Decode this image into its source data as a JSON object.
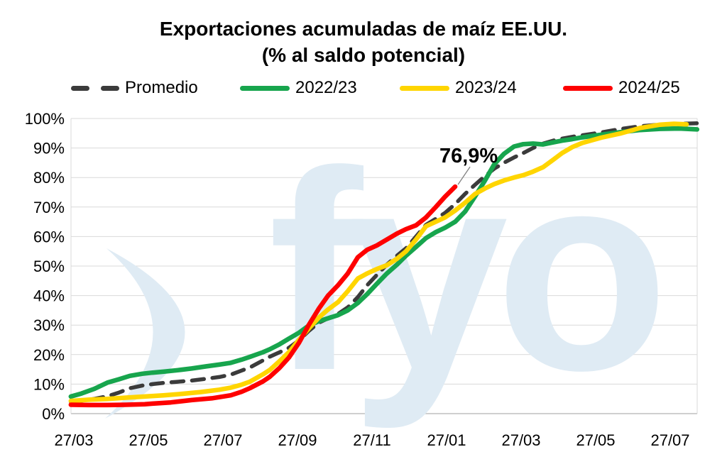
{
  "title": {
    "line1": "Exportaciones acumuladas de maíz EE.UU.",
    "line2": "(% al saldo potencial)"
  },
  "legend": [
    {
      "label": "Promedio",
      "color": "#3B3B3B",
      "dashed": true
    },
    {
      "label": "2022/23",
      "color": "#17A54D",
      "dashed": false
    },
    {
      "label": "2023/24",
      "color": "#FFD500",
      "dashed": false
    },
    {
      "label": "2024/25",
      "color": "#FE0000",
      "dashed": false
    }
  ],
  "annotation": {
    "text": "76,9%",
    "value": 76.9,
    "series": "2024/25"
  },
  "watermark": {
    "text": "fyo",
    "color": "#DFEBF4"
  },
  "chart_data": {
    "type": "line",
    "title": "Exportaciones acumuladas de maíz EE.UU. (% al saldo potencial)",
    "xlabel": "",
    "ylabel": "",
    "x_unit": "months since 27/03",
    "x_tick_labels": [
      "27/03",
      "27/05",
      "27/07",
      "27/09",
      "27/11",
      "27/01",
      "27/03",
      "27/05",
      "27/07"
    ],
    "x_tick_positions": [
      0,
      2,
      4,
      6,
      8,
      10,
      12,
      14,
      16
    ],
    "xlim": [
      -0.08,
      16.72
    ],
    "ylim": [
      0,
      100
    ],
    "y_ticks": [
      0,
      10,
      20,
      30,
      40,
      50,
      60,
      70,
      80,
      90,
      100
    ],
    "grid": "horizontal",
    "legend_position": "top",
    "series": [
      {
        "name": "Promedio",
        "color": "#3B3B3B",
        "style": "dashed",
        "points": [
          [
            -0.08,
            4.0
          ],
          [
            0.2,
            4.4
          ],
          [
            0.55,
            5.0
          ],
          [
            0.9,
            5.9
          ],
          [
            1.2,
            7.1
          ],
          [
            1.5,
            8.6
          ],
          [
            1.83,
            9.5
          ],
          [
            2.11,
            10.0
          ],
          [
            2.4,
            10.4
          ],
          [
            2.78,
            10.8
          ],
          [
            3.16,
            11.2
          ],
          [
            3.55,
            11.8
          ],
          [
            3.9,
            12.4
          ],
          [
            4.21,
            13.2
          ],
          [
            4.5,
            14.6
          ],
          [
            4.72,
            15.6
          ],
          [
            5.07,
            18.0
          ],
          [
            5.26,
            19.3
          ],
          [
            5.52,
            20.8
          ],
          [
            5.77,
            22.3
          ],
          [
            6.04,
            24.8
          ],
          [
            6.3,
            28.0
          ],
          [
            6.57,
            30.8
          ],
          [
            6.82,
            32.3
          ],
          [
            7.09,
            33.8
          ],
          [
            7.35,
            36.0
          ],
          [
            7.62,
            39.5
          ],
          [
            7.87,
            43.5
          ],
          [
            8.13,
            47.0
          ],
          [
            8.4,
            50.5
          ],
          [
            8.67,
            53.5
          ],
          [
            8.91,
            56.0
          ],
          [
            9.18,
            60.0
          ],
          [
            9.45,
            64.0
          ],
          [
            9.71,
            66.0
          ],
          [
            9.96,
            68.0
          ],
          [
            10.23,
            71.0
          ],
          [
            10.5,
            74.5
          ],
          [
            10.76,
            77.5
          ],
          [
            11.03,
            80.5
          ],
          [
            11.28,
            83.0
          ],
          [
            11.54,
            85.0
          ],
          [
            11.81,
            86.8
          ],
          [
            12.06,
            88.3
          ],
          [
            12.32,
            90.0
          ],
          [
            12.59,
            91.5
          ],
          [
            12.86,
            92.5
          ],
          [
            13.1,
            93.2
          ],
          [
            13.37,
            93.8
          ],
          [
            13.64,
            94.3
          ],
          [
            14.15,
            95.3
          ],
          [
            14.69,
            96.5
          ],
          [
            15.2,
            97.4
          ],
          [
            15.73,
            97.9
          ],
          [
            16.25,
            98.2
          ],
          [
            16.72,
            98.4
          ]
        ]
      },
      {
        "name": "2022/23",
        "color": "#17A54D",
        "style": "solid",
        "points": [
          [
            -0.08,
            5.8
          ],
          [
            0.2,
            6.8
          ],
          [
            0.55,
            8.4
          ],
          [
            0.9,
            10.5
          ],
          [
            1.2,
            11.6
          ],
          [
            1.5,
            12.8
          ],
          [
            1.83,
            13.5
          ],
          [
            2.11,
            13.9
          ],
          [
            2.4,
            14.2
          ],
          [
            2.78,
            14.7
          ],
          [
            3.16,
            15.3
          ],
          [
            3.55,
            16.0
          ],
          [
            3.9,
            16.6
          ],
          [
            4.21,
            17.2
          ],
          [
            4.5,
            18.3
          ],
          [
            4.72,
            19.2
          ],
          [
            5.07,
            20.8
          ],
          [
            5.26,
            21.8
          ],
          [
            5.52,
            23.5
          ],
          [
            5.77,
            25.4
          ],
          [
            6.04,
            27.4
          ],
          [
            6.3,
            29.8
          ],
          [
            6.57,
            31.3
          ],
          [
            6.82,
            32.3
          ],
          [
            7.09,
            33.4
          ],
          [
            7.35,
            35.0
          ],
          [
            7.62,
            37.5
          ],
          [
            7.87,
            40.5
          ],
          [
            8.13,
            44.0
          ],
          [
            8.4,
            47.5
          ],
          [
            8.67,
            50.5
          ],
          [
            8.91,
            53.5
          ],
          [
            9.18,
            56.5
          ],
          [
            9.45,
            59.5
          ],
          [
            9.71,
            61.5
          ],
          [
            9.96,
            63.0
          ],
          [
            10.23,
            65.0
          ],
          [
            10.5,
            68.5
          ],
          [
            10.76,
            73.5
          ],
          [
            11.03,
            79.0
          ],
          [
            11.28,
            84.5
          ],
          [
            11.54,
            88.0
          ],
          [
            11.81,
            90.5
          ],
          [
            12.06,
            91.3
          ],
          [
            12.32,
            91.5
          ],
          [
            12.59,
            91.2
          ],
          [
            12.86,
            91.9
          ],
          [
            13.1,
            92.5
          ],
          [
            13.37,
            93.0
          ],
          [
            13.64,
            93.6
          ],
          [
            14.15,
            94.5
          ],
          [
            14.69,
            95.4
          ],
          [
            15.2,
            96.1
          ],
          [
            15.73,
            96.5
          ],
          [
            16.25,
            96.6
          ],
          [
            16.72,
            96.3
          ]
        ]
      },
      {
        "name": "2023/24",
        "color": "#FFD500",
        "style": "solid",
        "points": [
          [
            -0.08,
            4.3
          ],
          [
            0.4,
            4.7
          ],
          [
            0.9,
            5.0
          ],
          [
            1.4,
            5.4
          ],
          [
            1.9,
            5.8
          ],
          [
            2.4,
            6.2
          ],
          [
            2.9,
            6.7
          ],
          [
            3.4,
            7.3
          ],
          [
            3.9,
            8.1
          ],
          [
            4.21,
            8.8
          ],
          [
            4.5,
            9.8
          ],
          [
            4.72,
            10.8
          ],
          [
            5.07,
            13.3
          ],
          [
            5.26,
            14.8
          ],
          [
            5.52,
            17.8
          ],
          [
            5.77,
            20.8
          ],
          [
            6.04,
            25.0
          ],
          [
            6.3,
            28.8
          ],
          [
            6.57,
            32.5
          ],
          [
            6.82,
            35.3
          ],
          [
            7.09,
            37.8
          ],
          [
            7.35,
            41.5
          ],
          [
            7.62,
            45.8
          ],
          [
            7.87,
            47.5
          ],
          [
            8.13,
            49.0
          ],
          [
            8.4,
            50.3
          ],
          [
            8.67,
            52.5
          ],
          [
            8.91,
            55.0
          ],
          [
            9.18,
            59.0
          ],
          [
            9.45,
            63.5
          ],
          [
            9.71,
            65.0
          ],
          [
            9.96,
            66.5
          ],
          [
            10.23,
            68.8
          ],
          [
            10.5,
            71.5
          ],
          [
            10.76,
            74.4
          ],
          [
            11.03,
            76.3
          ],
          [
            11.28,
            77.8
          ],
          [
            11.54,
            79.0
          ],
          [
            11.81,
            80.0
          ],
          [
            12.06,
            80.8
          ],
          [
            12.32,
            82.0
          ],
          [
            12.59,
            83.5
          ],
          [
            12.86,
            86.0
          ],
          [
            13.1,
            88.3
          ],
          [
            13.37,
            90.3
          ],
          [
            13.64,
            91.7
          ],
          [
            14.15,
            93.5
          ],
          [
            14.69,
            95.0
          ],
          [
            15.2,
            96.8
          ],
          [
            15.73,
            97.9
          ],
          [
            16.1,
            98.2
          ],
          [
            16.44,
            98.0
          ]
        ]
      },
      {
        "name": "2024/25",
        "color": "#FE0000",
        "style": "solid",
        "end_label": "76,9%",
        "points": [
          [
            -0.08,
            3.0
          ],
          [
            0.4,
            2.9
          ],
          [
            0.9,
            2.9
          ],
          [
            1.4,
            3.0
          ],
          [
            1.9,
            3.2
          ],
          [
            2.11,
            3.4
          ],
          [
            2.6,
            3.8
          ],
          [
            3.16,
            4.6
          ],
          [
            3.7,
            5.2
          ],
          [
            4.21,
            6.2
          ],
          [
            4.5,
            7.4
          ],
          [
            4.72,
            8.6
          ],
          [
            5.07,
            10.9
          ],
          [
            5.26,
            12.5
          ],
          [
            5.52,
            15.5
          ],
          [
            5.77,
            19.0
          ],
          [
            6.04,
            24.0
          ],
          [
            6.3,
            30.0
          ],
          [
            6.57,
            35.5
          ],
          [
            6.82,
            40.0
          ],
          [
            7.09,
            43.5
          ],
          [
            7.35,
            47.5
          ],
          [
            7.62,
            53.0
          ],
          [
            7.87,
            55.5
          ],
          [
            8.13,
            57.0
          ],
          [
            8.4,
            59.0
          ],
          [
            8.67,
            61.0
          ],
          [
            8.91,
            62.5
          ],
          [
            9.18,
            63.8
          ],
          [
            9.45,
            66.5
          ],
          [
            9.71,
            70.0
          ],
          [
            9.96,
            73.5
          ],
          [
            10.23,
            76.9
          ]
        ]
      }
    ],
    "colors": {
      "grid": "#D9D9D9",
      "axis_line": "#BFBFBF",
      "leader_line": "#808080"
    }
  }
}
